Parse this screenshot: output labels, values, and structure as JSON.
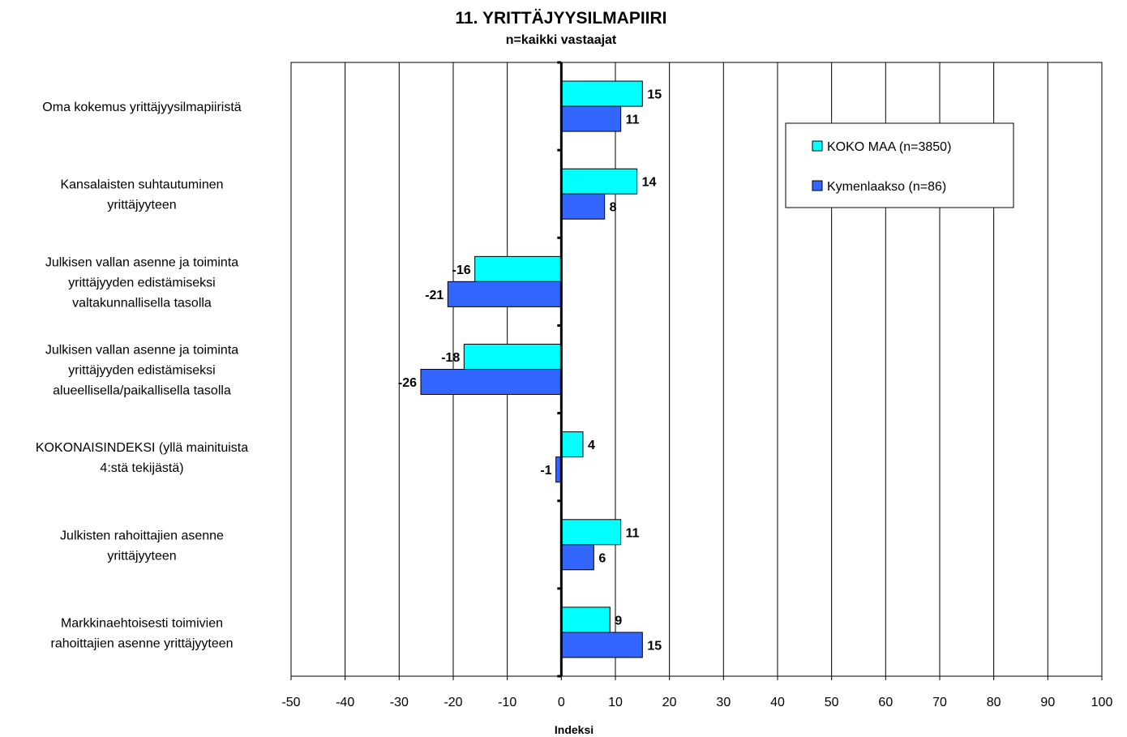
{
  "chart_data": {
    "type": "bar",
    "orientation": "horizontal",
    "title": "11. YRITTÄJYYSILMAPIIRI",
    "subtitle": "n=kaikki vastaajat",
    "xlabel": "Indeksi",
    "ylabel": "",
    "xlim": [
      -50,
      100
    ],
    "xticks": [
      -50,
      -40,
      -30,
      -20,
      -10,
      0,
      10,
      20,
      30,
      40,
      50,
      60,
      70,
      80,
      90,
      100
    ],
    "grid": true,
    "legend_position": "top-right",
    "categories": [
      [
        "Oma kokemus yrittäjyysilmapiiristä"
      ],
      [
        "Kansalaisten suhtautuminen",
        "yrittäjyyteen"
      ],
      [
        "Julkisen vallan asenne ja toiminta",
        "yrittäjyyden edistämiseksi",
        "valtakunnallisella tasolla"
      ],
      [
        "Julkisen vallan asenne ja toiminta",
        "yrittäjyyden edistämiseksi",
        "alueellisella/paikallisella tasolla"
      ],
      [
        "KOKONAISINDEKSI (yllä mainituista",
        "4:stä tekijästä)"
      ],
      [
        "Julkisten rahoittajien asenne",
        "yrittäjyyteen"
      ],
      [
        "Markkinaehtoisesti toimivien",
        "rahoittajien asenne yrittäjyyteen"
      ]
    ],
    "series": [
      {
        "name": "KOKO MAA (n=3850)",
        "color": "#00FFFF",
        "values": [
          15,
          14,
          -16,
          -18,
          4,
          11,
          9
        ]
      },
      {
        "name": "Kymenlaakso (n=86)",
        "color": "#3366FF",
        "values": [
          11,
          8,
          -21,
          -26,
          -1,
          6,
          15
        ]
      }
    ]
  }
}
